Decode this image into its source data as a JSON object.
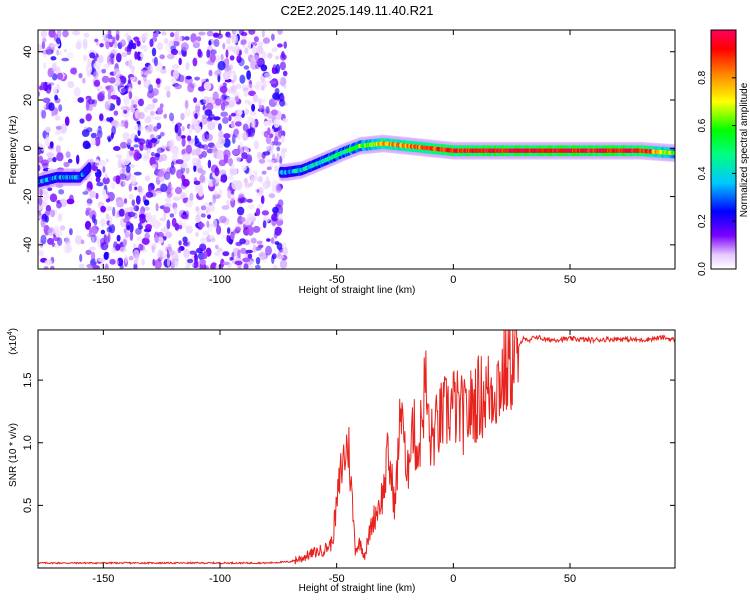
{
  "title": "C2E2.2025.149.11.40.R21",
  "chart_data": [
    {
      "type": "heatmap",
      "title": "C2E2.2025.149.11.40.R21",
      "xlabel": "Height of straight line (km)",
      "ylabel": "Frequency (Hz)",
      "xlim": [
        -178,
        95
      ],
      "ylim": [
        -50,
        49
      ],
      "xticks": [
        -150,
        -100,
        -50,
        0,
        50
      ],
      "yticks": [
        -40,
        -20,
        0,
        20,
        40
      ],
      "colorbar": {
        "label": "Normalized spectral amplitude",
        "range": [
          0,
          1
        ],
        "ticks": [
          "0.0",
          "0.2",
          "0.4",
          "0.6",
          "0.8"
        ]
      },
      "noise_region_x": [
        -178,
        -72
      ],
      "signal_track": {
        "x": [
          -178,
          -170,
          -160,
          -156,
          -72,
          -65,
          -55,
          -48,
          -40,
          -30,
          -20,
          -10,
          0,
          20,
          40,
          60,
          80,
          95
        ],
        "frequency": [
          -14,
          -12,
          -12,
          -8,
          -10,
          -9,
          -5,
          -2,
          1,
          2,
          1,
          0,
          -1,
          -1,
          -1,
          -1,
          -1,
          -2
        ],
        "amplitude": [
          0.3,
          0.32,
          0.35,
          0.2,
          0.35,
          0.4,
          0.45,
          0.5,
          0.6,
          0.75,
          0.8,
          0.85,
          0.9,
          0.95,
          0.95,
          0.95,
          0.95,
          0.6
        ]
      }
    },
    {
      "type": "line",
      "xlabel": "Height of straight line (km)",
      "ylabel": "SNR (10 * v/v)",
      "y_multiplier": "(x10",
      "y_multiplier_exp": "4",
      "multiplier_suffix": ")",
      "xlim": [
        -178,
        95
      ],
      "ylim": [
        0,
        1.9
      ],
      "xticks": [
        -150,
        -100,
        -50,
        0,
        50
      ],
      "yticks": [
        0.5,
        1.0,
        1.5
      ],
      "ytick_labels": [
        "0.5",
        "1.0",
        "1.5"
      ],
      "series": [
        {
          "color": "#e8231e",
          "x": [
            -178,
            -150,
            -100,
            -80,
            -70,
            -65,
            -60,
            -55,
            -52,
            -50,
            -48,
            -45,
            -42,
            -40,
            -38,
            -35,
            -30,
            -28,
            -25,
            -22,
            -20,
            -18,
            -15,
            -12,
            -10,
            -5,
            0,
            5,
            10,
            15,
            20,
            25,
            28,
            30,
            32,
            35,
            40,
            50,
            60,
            70,
            80,
            90,
            95
          ],
          "values": [
            0.04,
            0.04,
            0.04,
            0.04,
            0.05,
            0.08,
            0.12,
            0.15,
            0.2,
            0.5,
            0.8,
            1.0,
            0.15,
            0.2,
            0.1,
            0.35,
            0.6,
            0.9,
            0.5,
            1.4,
            0.6,
            1.2,
            0.9,
            1.5,
            1.0,
            1.2,
            1.3,
            1.2,
            1.35,
            1.4,
            1.5,
            1.65,
            1.75,
            1.85,
            1.8,
            1.85,
            1.82,
            1.83,
            1.82,
            1.83,
            1.82,
            1.84,
            1.82
          ]
        }
      ]
    }
  ]
}
